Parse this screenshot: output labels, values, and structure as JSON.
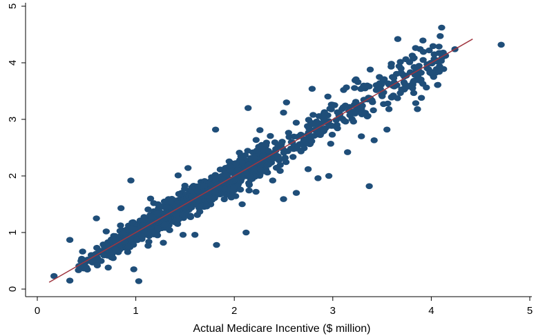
{
  "chart_data": {
    "type": "scatter",
    "xlabel": "Actual Medicare Incentive ($ million)",
    "ylabel": "",
    "xlim": [
      0,
      5
    ],
    "ylim": [
      0,
      5
    ],
    "xticks": [
      "0",
      "1",
      "2",
      "3",
      "4",
      "5"
    ],
    "yticks": [
      "0",
      "1",
      "2",
      "3",
      "4",
      "5"
    ],
    "grid": false,
    "colors": {
      "points": "#1f4e79",
      "fit_line": "#a0353f"
    },
    "fit_line": {
      "x": [
        0.12,
        4.42
      ],
      "y": [
        0.12,
        4.42
      ]
    },
    "outliers": [
      {
        "x": 0.17,
        "y": 0.23
      },
      {
        "x": 0.33,
        "y": 0.15
      },
      {
        "x": 0.33,
        "y": 0.87
      },
      {
        "x": 0.55,
        "y": 0.5
      },
      {
        "x": 0.6,
        "y": 1.25
      },
      {
        "x": 0.85,
        "y": 1.43
      },
      {
        "x": 0.98,
        "y": 0.35
      },
      {
        "x": 1.03,
        "y": 0.14
      },
      {
        "x": 0.95,
        "y": 1.92
      },
      {
        "x": 0.72,
        "y": 0.38
      },
      {
        "x": 1.22,
        "y": 0.95
      },
      {
        "x": 1.28,
        "y": 0.82
      },
      {
        "x": 1.43,
        "y": 2.01
      },
      {
        "x": 1.53,
        "y": 2.14
      },
      {
        "x": 1.82,
        "y": 0.78
      },
      {
        "x": 1.81,
        "y": 2.82
      },
      {
        "x": 1.97,
        "y": 1.62
      },
      {
        "x": 2.08,
        "y": 1.5
      },
      {
        "x": 2.12,
        "y": 1.0
      },
      {
        "x": 2.14,
        "y": 3.2
      },
      {
        "x": 2.22,
        "y": 1.72
      },
      {
        "x": 2.26,
        "y": 2.81
      },
      {
        "x": 2.39,
        "y": 1.92
      },
      {
        "x": 2.5,
        "y": 1.59
      },
      {
        "x": 2.5,
        "y": 3.12
      },
      {
        "x": 2.53,
        "y": 3.3
      },
      {
        "x": 2.63,
        "y": 1.7
      },
      {
        "x": 2.75,
        "y": 2.12
      },
      {
        "x": 2.79,
        "y": 3.54
      },
      {
        "x": 2.85,
        "y": 1.96
      },
      {
        "x": 2.96,
        "y": 2.0
      },
      {
        "x": 3.11,
        "y": 3.52
      },
      {
        "x": 3.15,
        "y": 2.42
      },
      {
        "x": 3.29,
        "y": 2.7
      },
      {
        "x": 3.37,
        "y": 1.82
      },
      {
        "x": 3.38,
        "y": 3.88
      },
      {
        "x": 3.42,
        "y": 2.63
      },
      {
        "x": 3.55,
        "y": 2.82
      },
      {
        "x": 3.57,
        "y": 3.18
      },
      {
        "x": 3.66,
        "y": 4.42
      },
      {
        "x": 3.86,
        "y": 3.18
      },
      {
        "x": 3.9,
        "y": 3.38
      },
      {
        "x": 4.03,
        "y": 4.15
      },
      {
        "x": 4.08,
        "y": 3.84
      },
      {
        "x": 4.24,
        "y": 4.24
      },
      {
        "x": 4.71,
        "y": 4.32
      },
      {
        "x": 3.78,
        "y": 4.01
      },
      {
        "x": 1.15,
        "y": 1.6
      },
      {
        "x": 1.48,
        "y": 0.96
      },
      {
        "x": 1.6,
        "y": 0.96
      },
      {
        "x": 0.7,
        "y": 1.02
      }
    ]
  }
}
